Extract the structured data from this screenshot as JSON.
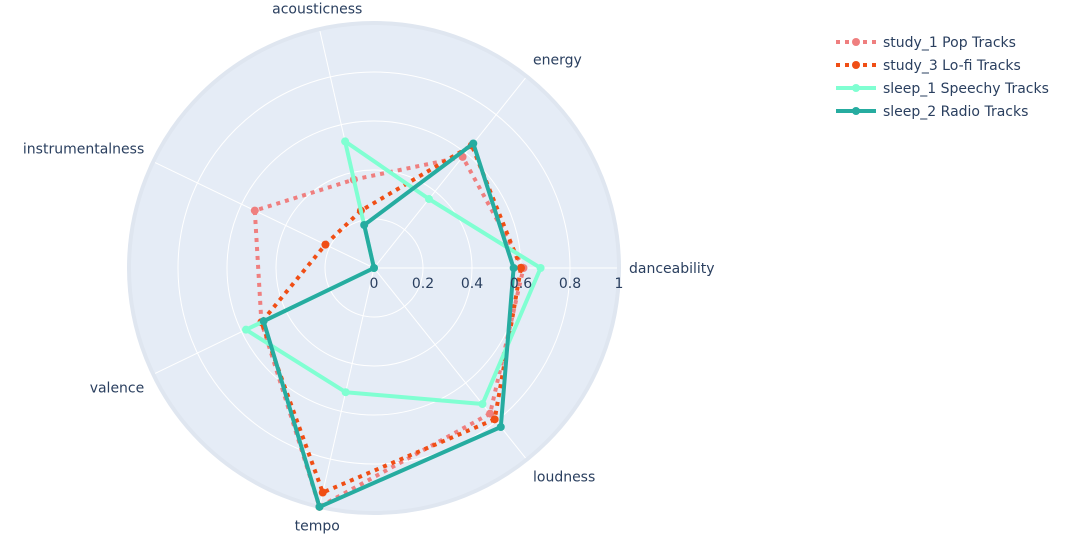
{
  "chart_data": {
    "type": "radar",
    "axes": [
      "danceability",
      "energy",
      "acousticness",
      "instrumentalness",
      "valence",
      "tempo",
      "loudness"
    ],
    "radial_ticks": [
      "0",
      "0.2",
      "0.4",
      "0.6",
      "0.8",
      "1"
    ],
    "radial_range": [
      0,
      1
    ],
    "legend_position": "top-right",
    "series": [
      {
        "name": "study_1 Pop Tracks",
        "values": [
          0.61,
          0.58,
          0.37,
          0.54,
          0.51,
          1.0,
          0.76
        ],
        "color": "#ef7f7f",
        "dash": "dot"
      },
      {
        "name": "study_3 Lo-fi Tracks",
        "values": [
          0.6,
          0.64,
          0.24,
          0.22,
          0.51,
          0.94,
          0.79
        ],
        "color": "#f04e15",
        "dash": "dot"
      },
      {
        "name": "sleep_1 Speechy Tracks",
        "values": [
          0.68,
          0.36,
          0.53,
          0.0,
          0.58,
          0.52,
          0.71
        ],
        "color": "#80ffd2",
        "dash": "solid"
      },
      {
        "name": "sleep_2 Radio Tracks",
        "values": [
          0.57,
          0.65,
          0.18,
          0.0,
          0.5,
          1.0,
          0.83
        ],
        "color": "#26aca0",
        "dash": "solid"
      }
    ]
  }
}
